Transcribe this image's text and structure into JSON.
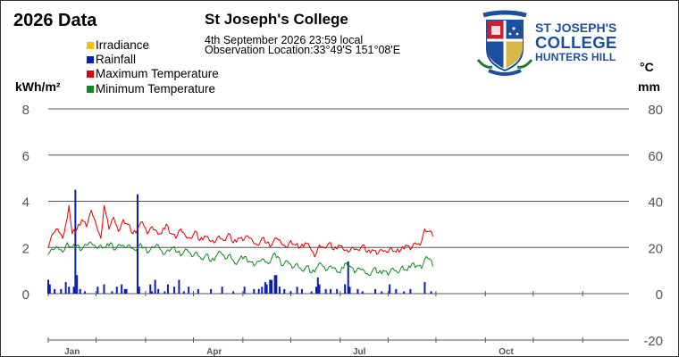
{
  "header": {
    "title": "2026 Data",
    "station": "St Joseph's College",
    "datetime": "4th September 2026  23:59 local",
    "location": "Observation Location:33°49'S 151°08'E"
  },
  "logo": {
    "line1": "ST JOSEPH'S",
    "line2": "COLLEGE",
    "line3": "HUNTERS HILL"
  },
  "colors": {
    "irradiance": "#f5c000",
    "rainfall": "#0b1fb5",
    "max_temp": "#e00000",
    "min_temp": "#0f8a1f",
    "grid": "#555555",
    "tick_text": "#555555"
  },
  "chart_data": {
    "type": "line",
    "x_axis": {
      "unit": "day of year",
      "range": [
        1,
        365
      ],
      "tick_labels": [
        {
          "label": "Jan",
          "day": 16
        },
        {
          "label": "Apr",
          "day": 105
        },
        {
          "label": "Jul",
          "day": 196
        },
        {
          "label": "Oct",
          "day": 288
        }
      ]
    },
    "left_axis": {
      "label": "kWh/m²",
      "range": [
        0,
        8
      ],
      "ticks": [
        "8",
        "6",
        "4",
        "2",
        "0"
      ],
      "grid_values": [
        8,
        6,
        4,
        2,
        0
      ]
    },
    "right_axis": {
      "label_top": "°C",
      "label_bottom": "mm",
      "range": [
        -20,
        80
      ],
      "ticks": [
        "80",
        "60",
        "40",
        "20",
        "0",
        "-20"
      ]
    },
    "legend": {
      "placement": "top-left",
      "items": [
        {
          "name": "Irradiance",
          "color": "#f5c000"
        },
        {
          "name": "Rainfall",
          "color": "#0b1fb5"
        },
        {
          "name": "Maximum Temperature",
          "color": "#e00000"
        },
        {
          "name": "Minimum Temperature",
          "color": "#0f8a1f"
        }
      ]
    },
    "series": [
      {
        "name": "Maximum Temperature",
        "axis": "right",
        "unit": "°C",
        "points": [
          [
            1,
            20
          ],
          [
            4,
            26
          ],
          [
            7,
            28
          ],
          [
            10,
            24
          ],
          [
            13,
            33
          ],
          [
            14,
            38
          ],
          [
            16,
            26
          ],
          [
            19,
            28
          ],
          [
            22,
            32
          ],
          [
            25,
            29
          ],
          [
            28,
            36
          ],
          [
            31,
            30
          ],
          [
            34,
            24
          ],
          [
            36,
            38
          ],
          [
            39,
            28
          ],
          [
            42,
            33
          ],
          [
            45,
            27
          ],
          [
            48,
            32
          ],
          [
            51,
            30
          ],
          [
            54,
            26
          ],
          [
            57,
            28
          ],
          [
            60,
            31
          ],
          [
            63,
            26
          ],
          [
            66,
            29
          ],
          [
            69,
            27
          ],
          [
            72,
            26
          ],
          [
            75,
            30
          ],
          [
            78,
            26
          ],
          [
            81,
            24
          ],
          [
            84,
            28
          ],
          [
            87,
            25
          ],
          [
            90,
            24
          ],
          [
            93,
            27
          ],
          [
            96,
            23
          ],
          [
            99,
            25
          ],
          [
            102,
            23
          ],
          [
            105,
            22
          ],
          [
            108,
            25
          ],
          [
            111,
            23
          ],
          [
            114,
            26
          ],
          [
            117,
            22
          ],
          [
            120,
            24
          ],
          [
            123,
            23
          ],
          [
            126,
            25
          ],
          [
            129,
            23
          ],
          [
            132,
            21
          ],
          [
            135,
            24
          ],
          [
            138,
            22
          ],
          [
            141,
            21
          ],
          [
            144,
            24
          ],
          [
            147,
            22
          ],
          [
            150,
            20
          ],
          [
            153,
            23
          ],
          [
            156,
            21
          ],
          [
            159,
            20
          ],
          [
            162,
            22
          ],
          [
            165,
            20
          ],
          [
            168,
            16
          ],
          [
            171,
            21
          ],
          [
            174,
            20
          ],
          [
            177,
            22
          ],
          [
            180,
            19
          ],
          [
            183,
            21
          ],
          [
            186,
            19
          ],
          [
            189,
            18
          ],
          [
            192,
            20
          ],
          [
            195,
            19
          ],
          [
            198,
            21
          ],
          [
            201,
            18
          ],
          [
            204,
            19
          ],
          [
            207,
            17
          ],
          [
            210,
            19
          ],
          [
            213,
            18
          ],
          [
            216,
            20
          ],
          [
            219,
            18
          ],
          [
            222,
            19
          ],
          [
            225,
            21
          ],
          [
            228,
            19
          ],
          [
            231,
            22
          ],
          [
            234,
            21
          ],
          [
            237,
            28
          ],
          [
            240,
            27
          ],
          [
            242,
            25
          ]
        ]
      },
      {
        "name": "Minimum Temperature",
        "axis": "right",
        "unit": "°C",
        "points": [
          [
            1,
            17
          ],
          [
            4,
            19
          ],
          [
            7,
            20
          ],
          [
            10,
            18
          ],
          [
            13,
            22
          ],
          [
            16,
            20
          ],
          [
            19,
            21
          ],
          [
            22,
            19
          ],
          [
            25,
            21
          ],
          [
            28,
            22
          ],
          [
            31,
            20
          ],
          [
            34,
            21
          ],
          [
            37,
            20
          ],
          [
            40,
            22
          ],
          [
            43,
            19
          ],
          [
            46,
            21
          ],
          [
            49,
            20
          ],
          [
            52,
            21
          ],
          [
            55,
            19
          ],
          [
            58,
            21
          ],
          [
            61,
            20
          ],
          [
            64,
            18
          ],
          [
            67,
            20
          ],
          [
            70,
            21
          ],
          [
            73,
            17
          ],
          [
            76,
            19
          ],
          [
            79,
            20
          ],
          [
            82,
            18
          ],
          [
            85,
            17
          ],
          [
            88,
            19
          ],
          [
            91,
            16
          ],
          [
            94,
            18
          ],
          [
            97,
            15
          ],
          [
            100,
            17
          ],
          [
            103,
            14
          ],
          [
            106,
            16
          ],
          [
            109,
            18
          ],
          [
            112,
            15
          ],
          [
            115,
            17
          ],
          [
            118,
            13
          ],
          [
            121,
            15
          ],
          [
            124,
            16
          ],
          [
            127,
            14
          ],
          [
            130,
            12
          ],
          [
            133,
            14
          ],
          [
            136,
            15
          ],
          [
            139,
            13
          ],
          [
            142,
            17
          ],
          [
            145,
            16
          ],
          [
            148,
            12
          ],
          [
            151,
            14
          ],
          [
            154,
            11
          ],
          [
            157,
            13
          ],
          [
            160,
            10
          ],
          [
            163,
            12
          ],
          [
            166,
            9
          ],
          [
            169,
            11
          ],
          [
            172,
            13
          ],
          [
            175,
            10
          ],
          [
            178,
            12
          ],
          [
            181,
            11
          ],
          [
            184,
            9
          ],
          [
            187,
            13
          ],
          [
            190,
            12
          ],
          [
            193,
            9
          ],
          [
            196,
            11
          ],
          [
            199,
            10
          ],
          [
            202,
            8
          ],
          [
            205,
            11
          ],
          [
            208,
            9
          ],
          [
            211,
            10
          ],
          [
            214,
            8
          ],
          [
            217,
            11
          ],
          [
            220,
            9
          ],
          [
            223,
            12
          ],
          [
            226,
            10
          ],
          [
            229,
            13
          ],
          [
            232,
            12
          ],
          [
            235,
            11
          ],
          [
            238,
            16
          ],
          [
            240,
            15
          ],
          [
            242,
            12
          ]
        ]
      },
      {
        "name": "Rainfall",
        "axis": "right",
        "unit": "mm",
        "bars": [
          [
            1,
            6
          ],
          [
            2,
            4
          ],
          [
            5,
            2
          ],
          [
            9,
            2
          ],
          [
            12,
            5
          ],
          [
            14,
            3
          ],
          [
            17,
            3
          ],
          [
            18,
            45
          ],
          [
            19,
            8
          ],
          [
            21,
            2
          ],
          [
            24,
            1
          ],
          [
            32,
            3
          ],
          [
            36,
            4
          ],
          [
            41,
            1
          ],
          [
            44,
            3
          ],
          [
            47,
            4
          ],
          [
            49,
            2
          ],
          [
            50,
            2
          ],
          [
            57,
            43
          ],
          [
            58,
            3
          ],
          [
            65,
            4
          ],
          [
            66,
            1
          ],
          [
            68,
            6
          ],
          [
            70,
            2
          ],
          [
            74,
            1
          ],
          [
            76,
            4
          ],
          [
            80,
            3
          ],
          [
            83,
            6
          ],
          [
            86,
            1
          ],
          [
            89,
            3
          ],
          [
            95,
            2
          ],
          [
            103,
            2
          ],
          [
            110,
            3
          ],
          [
            117,
            1
          ],
          [
            124,
            3
          ],
          [
            130,
            2
          ],
          [
            133,
            2
          ],
          [
            135,
            3
          ],
          [
            137,
            5
          ],
          [
            138,
            4
          ],
          [
            140,
            6
          ],
          [
            141,
            6
          ],
          [
            143,
            8
          ],
          [
            144,
            8
          ],
          [
            146,
            3
          ],
          [
            149,
            2
          ],
          [
            153,
            1
          ],
          [
            157,
            3
          ],
          [
            160,
            2
          ],
          [
            166,
            1
          ],
          [
            169,
            3
          ],
          [
            170,
            7
          ],
          [
            171,
            4
          ],
          [
            175,
            2
          ],
          [
            178,
            2
          ],
          [
            182,
            2
          ],
          [
            187,
            4
          ],
          [
            189,
            14
          ],
          [
            190,
            3
          ],
          [
            195,
            2
          ],
          [
            198,
            1
          ],
          [
            206,
            2
          ],
          [
            210,
            1
          ],
          [
            215,
            4
          ],
          [
            219,
            2
          ],
          [
            224,
            1
          ],
          [
            228,
            2
          ],
          [
            237,
            5
          ],
          [
            241,
            1
          ]
        ]
      }
    ]
  }
}
